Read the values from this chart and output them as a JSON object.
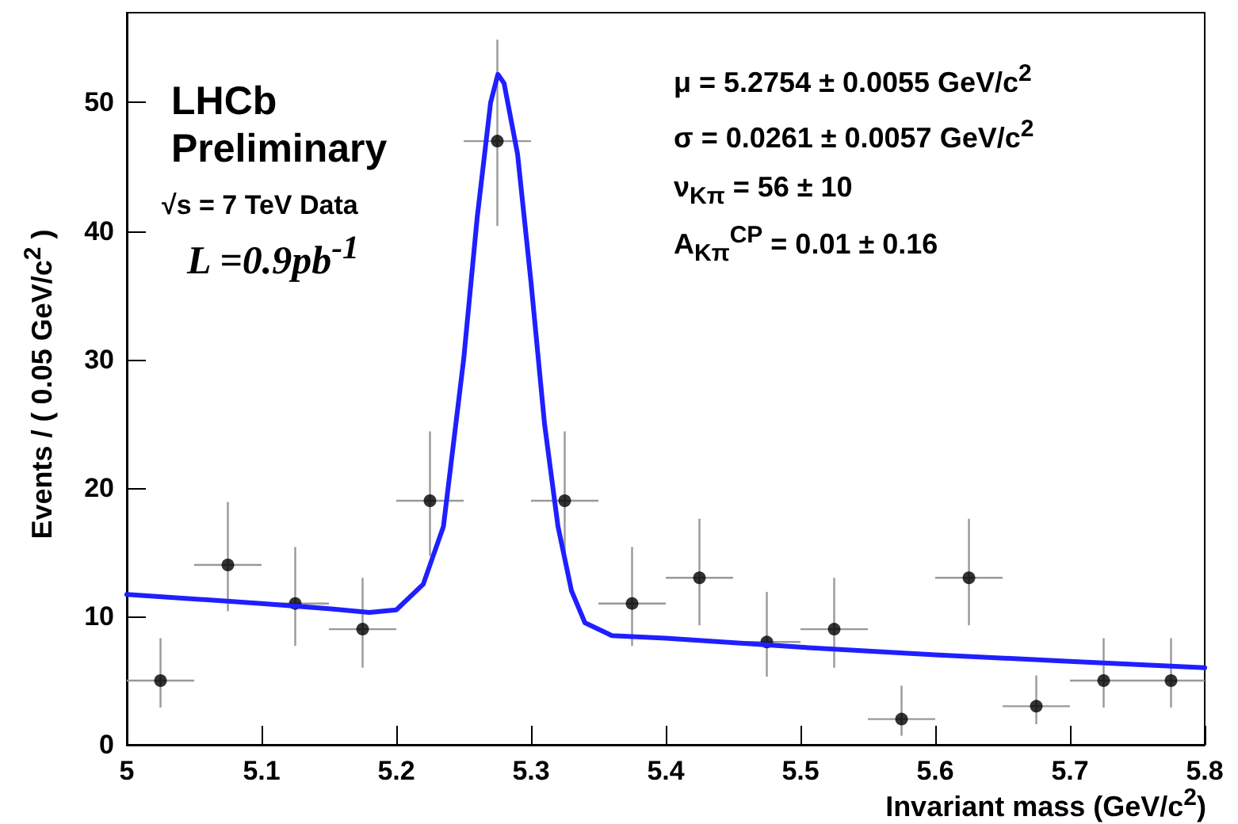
{
  "chart_data": {
    "type": "scatter",
    "xlabel": "Invariant mass (GeV/c$^{2}$)",
    "ylabel": "Events / ( 0.05 GeV/c$^{2}$ )",
    "xlim": [
      5,
      5.8
    ],
    "xticks": [
      5,
      5.1,
      5.2,
      5.3,
      5.4,
      5.5,
      5.6,
      5.7,
      5.8
    ],
    "ylim": [
      0,
      57
    ],
    "yticks": [
      0,
      10,
      20,
      30,
      40,
      50
    ],
    "grid": false,
    "annotations": [
      "LHCb",
      "Preliminary",
      "√s = 7 TeV Data",
      "L =0.9pb$^{-1}$",
      "μ =  5.2754 ± 0.0055 GeV/c$^{2}$",
      "σ =  0.0261 ± 0.0057 GeV/c$^{2}$",
      "ν$_{Kπ}$ =  56 ± 10",
      "A$_{Kπ}$$^{CP}$ =  0.01 ± 0.16"
    ],
    "series": [
      {
        "type": "scatter",
        "marker": "circle",
        "color": "#000000",
        "x": [
          5.025,
          5.075,
          5.125,
          5.175,
          5.225,
          5.275,
          5.325,
          5.375,
          5.425,
          5.475,
          5.525,
          5.575,
          5.625,
          5.675,
          5.725,
          5.775
        ],
        "values": [
          5,
          14,
          11,
          9,
          19,
          47,
          19,
          11,
          13,
          8,
          9,
          2,
          13,
          3,
          5,
          5
        ],
        "errors": [
          [
            2.9,
            8.3
          ],
          [
            10.4,
            18.9
          ],
          [
            7.7,
            15.4
          ],
          [
            6,
            13
          ],
          [
            14.7,
            24.4
          ],
          [
            40.4,
            54.9
          ],
          [
            14.7,
            24.4
          ],
          [
            7.7,
            15.4
          ],
          [
            9.3,
            17.6
          ],
          [
            5.3,
            11.9
          ],
          [
            6,
            13
          ],
          [
            0.7,
            4.6
          ],
          [
            9.3,
            17.6
          ],
          [
            1.6,
            5.4
          ],
          [
            2.9,
            8.3
          ],
          [
            2.9,
            8.3
          ]
        ],
        "xerrors": [
          0.025,
          0.025,
          0.025,
          0.025,
          0.025,
          0.025,
          0.025,
          0.025,
          0.025,
          0.025,
          0.025,
          0.025,
          0.025,
          0.025,
          0.025,
          0.025
        ]
      },
      {
        "type": "line",
        "marker": "none",
        "line_style": "solid",
        "color": "#1f1fff",
        "x": [
          5,
          5.1,
          5.15,
          5.18,
          5.2,
          5.22,
          5.235,
          5.25,
          5.26,
          5.27,
          5.2754,
          5.28,
          5.29,
          5.3,
          5.31,
          5.32,
          5.33,
          5.34,
          5.36,
          5.4,
          5.5,
          5.6,
          5.7,
          5.8
        ],
        "values": [
          11.7,
          11,
          10.6,
          10.3,
          10.5,
          12.5,
          17,
          30,
          41,
          50,
          52.2,
          51.5,
          46,
          36,
          25,
          17,
          12,
          9.5,
          8.5,
          8.3,
          7.6,
          7,
          6.5,
          6
        ]
      }
    ]
  }
}
